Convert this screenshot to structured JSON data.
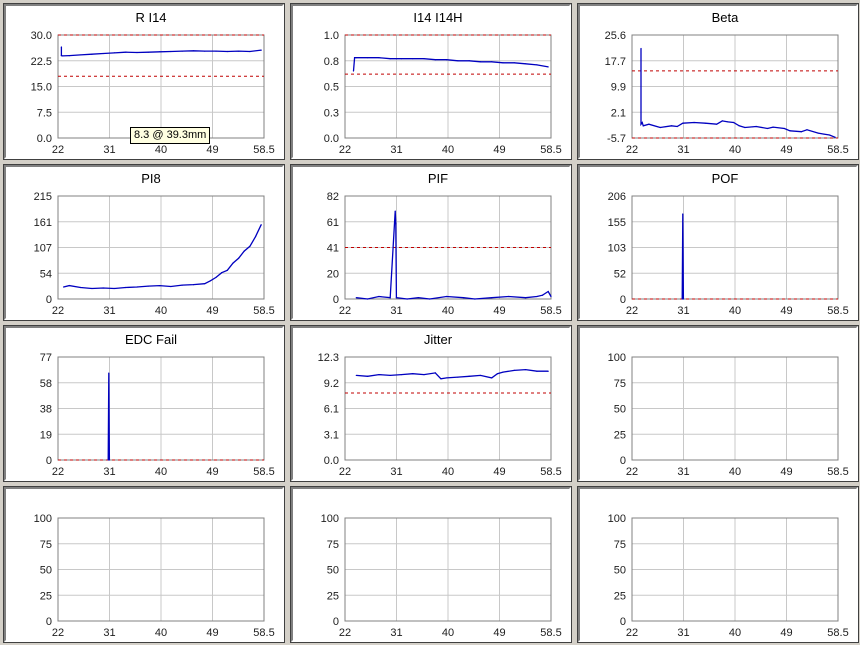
{
  "colors": {
    "data": "#0000c0",
    "threshold": "#c00000",
    "background": "#d4d0c8"
  },
  "tooltip": "8.3 @ 39.3mm",
  "chart_data": [
    {
      "type": "line",
      "title": "R I14",
      "x_ticks": [
        "22",
        "31",
        "40",
        "49",
        "58.5"
      ],
      "y_ticks": [
        "0.0",
        "7.5",
        "15.0",
        "22.5",
        "30.0"
      ],
      "xlim": [
        22,
        58.5
      ],
      "ylim": [
        0,
        30
      ],
      "thresholds": [
        30,
        18
      ],
      "series": [
        {
          "x": [
            22.6,
            22.6,
            22.8,
            24,
            26,
            28,
            30,
            32,
            34,
            36,
            38,
            40,
            42,
            44,
            46,
            48,
            50,
            52,
            54,
            56,
            58
          ],
          "y": [
            26.5,
            24.0,
            23.9,
            24.0,
            24.2,
            24.4,
            24.6,
            24.8,
            25.0,
            24.9,
            25.0,
            25.1,
            25.2,
            25.3,
            25.4,
            25.3,
            25.3,
            25.2,
            25.3,
            25.2,
            25.6
          ]
        }
      ]
    },
    {
      "type": "line",
      "title": "I14 I14H",
      "x_ticks": [
        "22",
        "31",
        "40",
        "49",
        "58.5"
      ],
      "y_ticks": [
        "0.0",
        "0.3",
        "0.5",
        "0.8",
        "1.0"
      ],
      "xlim": [
        22,
        58.5
      ],
      "ylim": [
        0,
        1
      ],
      "thresholds": [
        1.0,
        0.62
      ],
      "series": [
        {
          "x": [
            23.5,
            23.7,
            24,
            26,
            28,
            30,
            32,
            34,
            36,
            38,
            40,
            42,
            44,
            46,
            48,
            50,
            52,
            54,
            56,
            58
          ],
          "y": [
            0.65,
            0.78,
            0.78,
            0.78,
            0.78,
            0.77,
            0.77,
            0.77,
            0.77,
            0.76,
            0.76,
            0.75,
            0.75,
            0.74,
            0.74,
            0.73,
            0.73,
            0.72,
            0.71,
            0.69
          ]
        }
      ]
    },
    {
      "type": "line",
      "title": "Beta",
      "x_ticks": [
        "22",
        "31",
        "40",
        "49",
        "58.5"
      ],
      "y_ticks": [
        "-5.7",
        "2.1",
        "9.9",
        "17.7",
        "25.6"
      ],
      "xlim": [
        22,
        58.5
      ],
      "ylim": [
        -5.7,
        25.6
      ],
      "thresholds": [
        14.7,
        -5.7
      ],
      "series": [
        {
          "x": [
            23.6,
            23.6,
            23.8,
            24,
            25,
            27,
            29,
            30,
            31,
            33,
            35,
            37,
            38,
            39,
            40,
            41,
            42,
            44,
            46,
            47,
            49,
            50,
            52,
            53,
            55,
            56,
            57,
            58
          ],
          "y": [
            21.5,
            -1.5,
            -1.0,
            -2.0,
            -1.5,
            -2.5,
            -2.0,
            -2.2,
            -1.2,
            -1.0,
            -1.2,
            -1.5,
            -0.5,
            -0.8,
            -1.0,
            -2.0,
            -2.5,
            -2.2,
            -2.8,
            -2.4,
            -2.8,
            -3.5,
            -3.8,
            -3.2,
            -4.2,
            -4.5,
            -4.8,
            -5.5
          ]
        }
      ]
    },
    {
      "type": "line",
      "title": "PI8",
      "x_ticks": [
        "22",
        "31",
        "40",
        "49",
        "58.5"
      ],
      "y_ticks": [
        "0",
        "54",
        "107",
        "161",
        "215"
      ],
      "xlim": [
        22,
        58.5
      ],
      "ylim": [
        0,
        215
      ],
      "thresholds": [],
      "series": [
        {
          "x": [
            23,
            24,
            26,
            28,
            30,
            32,
            34,
            36,
            38,
            40,
            42,
            44,
            46,
            48,
            49,
            50,
            51,
            52,
            53,
            54,
            55,
            56,
            57,
            58
          ],
          "y": [
            25,
            28,
            24,
            22,
            23,
            22,
            24,
            25,
            27,
            28,
            26,
            29,
            30,
            32,
            38,
            45,
            55,
            60,
            75,
            85,
            100,
            110,
            130,
            155
          ]
        }
      ]
    },
    {
      "type": "line",
      "title": "PIF",
      "x_ticks": [
        "22",
        "31",
        "40",
        "49",
        "58.5"
      ],
      "y_ticks": [
        "0",
        "20",
        "41",
        "61",
        "82"
      ],
      "xlim": [
        22,
        58.5
      ],
      "ylim": [
        0,
        82
      ],
      "thresholds": [
        41
      ],
      "series": [
        {
          "x": [
            24,
            26,
            28,
            30,
            30.9,
            31,
            31.1,
            33,
            35,
            37,
            40,
            43,
            45,
            48,
            51,
            54,
            56,
            57,
            58,
            58.5
          ],
          "y": [
            1,
            0,
            2,
            1,
            70,
            60,
            1,
            0,
            1,
            0,
            2,
            1,
            0,
            1,
            2,
            1,
            2,
            3,
            6,
            2
          ]
        }
      ]
    },
    {
      "type": "line",
      "title": "POF",
      "x_ticks": [
        "22",
        "31",
        "40",
        "49",
        "58.5"
      ],
      "y_ticks": [
        "0",
        "52",
        "103",
        "155",
        "206"
      ],
      "xlim": [
        22,
        58.5
      ],
      "ylim": [
        0,
        206
      ],
      "thresholds": [
        0
      ],
      "series": [
        {
          "x": [
            30.9,
            31,
            31.1
          ],
          "y": [
            0,
            170,
            0
          ]
        }
      ]
    },
    {
      "type": "line",
      "title": "EDC Fail",
      "x_ticks": [
        "22",
        "31",
        "40",
        "49",
        "58.5"
      ],
      "y_ticks": [
        "0",
        "19",
        "38",
        "58",
        "77"
      ],
      "xlim": [
        22,
        58.5
      ],
      "ylim": [
        0,
        77
      ],
      "thresholds": [
        0
      ],
      "series": [
        {
          "x": [
            30.9,
            31,
            31.1
          ],
          "y": [
            0,
            65,
            0
          ]
        }
      ]
    },
    {
      "type": "line",
      "title": "Jitter",
      "x_ticks": [
        "22",
        "31",
        "40",
        "49",
        "58.5"
      ],
      "y_ticks": [
        "0.0",
        "3.1",
        "6.1",
        "9.2",
        "12.3"
      ],
      "xlim": [
        22,
        58.5
      ],
      "ylim": [
        0,
        12.3
      ],
      "thresholds": [
        8.0
      ],
      "series": [
        {
          "x": [
            24,
            26,
            28,
            30,
            32,
            34,
            36,
            38,
            39,
            40,
            42,
            44,
            46,
            48,
            49,
            50,
            52,
            54,
            56,
            58
          ],
          "y": [
            10.1,
            10.0,
            10.2,
            10.1,
            10.2,
            10.3,
            10.2,
            10.4,
            9.7,
            9.8,
            9.9,
            10.0,
            10.1,
            9.8,
            10.3,
            10.5,
            10.7,
            10.8,
            10.6,
            10.6
          ]
        }
      ]
    },
    {
      "type": "line",
      "title": "",
      "x_ticks": [
        "22",
        "31",
        "40",
        "49",
        "58.5"
      ],
      "y_ticks": [
        "0",
        "25",
        "50",
        "75",
        "100"
      ],
      "xlim": [
        22,
        58.5
      ],
      "ylim": [
        0,
        100
      ],
      "thresholds": [],
      "series": []
    },
    {
      "type": "line",
      "title": "",
      "x_ticks": [
        "22",
        "31",
        "40",
        "49",
        "58.5"
      ],
      "y_ticks": [
        "0",
        "25",
        "50",
        "75",
        "100"
      ],
      "xlim": [
        22,
        58.5
      ],
      "ylim": [
        0,
        100
      ],
      "thresholds": [],
      "series": []
    },
    {
      "type": "line",
      "title": "",
      "x_ticks": [
        "22",
        "31",
        "40",
        "49",
        "58.5"
      ],
      "y_ticks": [
        "0",
        "25",
        "50",
        "75",
        "100"
      ],
      "xlim": [
        22,
        58.5
      ],
      "ylim": [
        0,
        100
      ],
      "thresholds": [],
      "series": []
    },
    {
      "type": "line",
      "title": "",
      "x_ticks": [
        "22",
        "31",
        "40",
        "49",
        "58.5"
      ],
      "y_ticks": [
        "0",
        "25",
        "50",
        "75",
        "100"
      ],
      "xlim": [
        22,
        58.5
      ],
      "ylim": [
        0,
        100
      ],
      "thresholds": [],
      "series": []
    }
  ]
}
